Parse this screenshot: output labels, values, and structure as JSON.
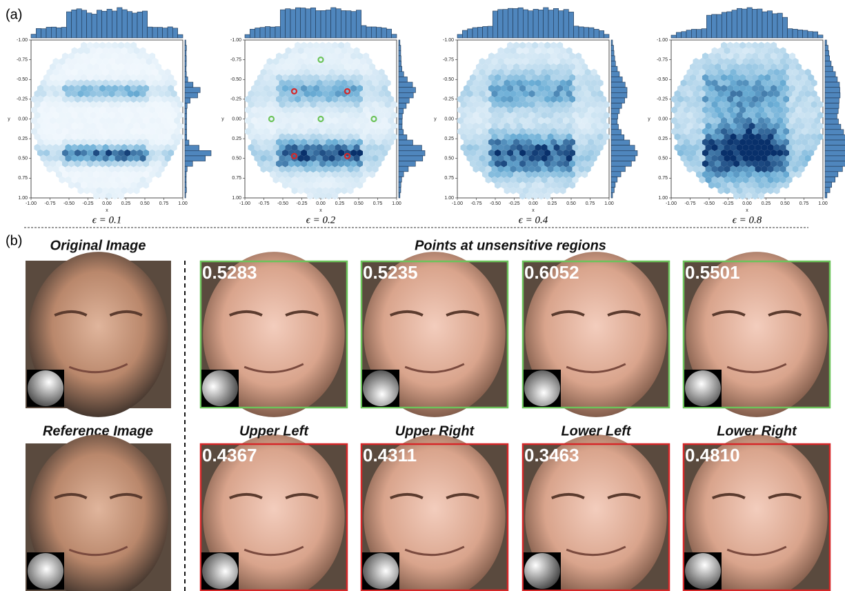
{
  "panel_a": {
    "label": "(a)",
    "xlabel": "x",
    "ylabel": "y",
    "ticks": [
      {
        "value": -1,
        "label": "-1.00"
      },
      {
        "value": -0.75,
        "label": "-0.75"
      },
      {
        "value": -0.5,
        "label": "-0.50"
      },
      {
        "value": -0.25,
        "label": "-0.25"
      },
      {
        "value": 0,
        "label": "0.00"
      },
      {
        "value": 0.25,
        "label": "0.25"
      },
      {
        "value": 0.5,
        "label": "0.50"
      },
      {
        "value": 0.75,
        "label": "0.75"
      },
      {
        "value": 1,
        "label": "1.00"
      }
    ],
    "plots": [
      {
        "caption": "ϵ = 0.1"
      },
      {
        "caption": "ϵ = 0.2",
        "points": [
          {
            "x": 0,
            "y": -0.75,
            "color": "#6cc35a"
          },
          {
            "x": -0.65,
            "y": 0,
            "color": "#6cc35a"
          },
          {
            "x": 0,
            "y": 0,
            "color": "#6cc35a"
          },
          {
            "x": 0.7,
            "y": 0,
            "color": "#6cc35a"
          },
          {
            "x": -0.35,
            "y": -0.35,
            "color": "#d62728"
          },
          {
            "x": 0.35,
            "y": -0.35,
            "color": "#d62728"
          },
          {
            "x": -0.35,
            "y": 0.47,
            "color": "#d62728"
          },
          {
            "x": 0.35,
            "y": 0.47,
            "color": "#d62728"
          }
        ]
      },
      {
        "caption": "ϵ = 0.4"
      },
      {
        "caption": "ϵ = 0.8"
      }
    ]
  },
  "panel_b": {
    "label": "(b)",
    "original": "Original Image",
    "reference": "Reference Image",
    "group_title": "Points at unsensitive regions",
    "green_scores": [
      "0.5283",
      "0.5235",
      "0.6052",
      "0.5501"
    ],
    "red_titles": [
      "Upper Left",
      "Upper Right",
      "Lower Left",
      "Lower Right"
    ],
    "red_scores": [
      "0.4367",
      "0.4311",
      "0.3463",
      "0.4810"
    ]
  }
}
